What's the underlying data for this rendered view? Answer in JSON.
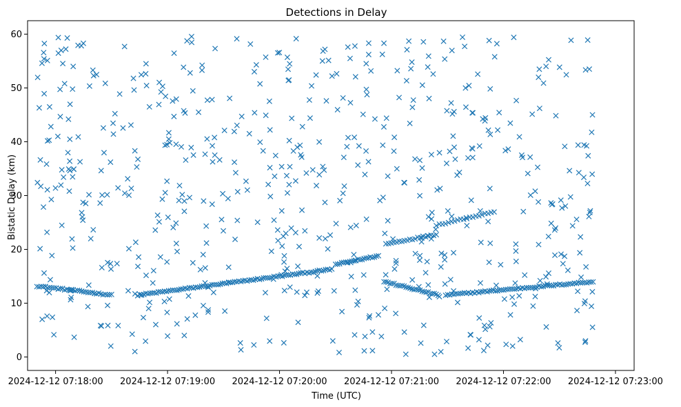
{
  "chart_data": {
    "type": "scatter",
    "title": "Detections in Delay",
    "xlabel": "Time (UTC)",
    "ylabel": "Bistatic Delay (km)",
    "x_unit": "seconds after 2024-12-12 07:17:50 UTC",
    "xlim": [
      -5,
      320
    ],
    "ylim": [
      -2.5,
      62.5
    ],
    "x_ticks": [
      {
        "value": 10,
        "label": "2024-12-12 07:18:00"
      },
      {
        "value": 70,
        "label": "2024-12-12 07:19:00"
      },
      {
        "value": 130,
        "label": "2024-12-12 07:20:00"
      },
      {
        "value": 190,
        "label": "2024-12-12 07:21:00"
      },
      {
        "value": 250,
        "label": "2024-12-12 07:22:00"
      },
      {
        "value": 310,
        "label": "2024-12-12 07:23:00"
      }
    ],
    "y_ticks": [
      {
        "value": 0,
        "label": "0"
      },
      {
        "value": 10,
        "label": "10"
      },
      {
        "value": 20,
        "label": "20"
      },
      {
        "value": 30,
        "label": "30"
      },
      {
        "value": 40,
        "label": "40"
      },
      {
        "value": 50,
        "label": "50"
      },
      {
        "value": 60,
        "label": "60"
      }
    ],
    "marker": "x",
    "color": "#1f77b4",
    "grid": false,
    "legend": "none",
    "track_segments": [
      {
        "x_start": 0,
        "x_end": 40,
        "y_start": 13.2,
        "y_end": 11.5,
        "count": 36
      },
      {
        "x_start": 54,
        "x_end": 158,
        "y_start": 11.5,
        "y_end": 16.3,
        "count": 95
      },
      {
        "x_start": 160,
        "x_end": 183,
        "y_start": 17.2,
        "y_end": 18.8,
        "count": 22
      },
      {
        "x_start": 187,
        "x_end": 214,
        "y_start": 21.0,
        "y_end": 22.8,
        "count": 20
      },
      {
        "x_start": 214,
        "x_end": 245,
        "y_start": 24.5,
        "y_end": 27.0,
        "count": 20
      },
      {
        "x_start": 186,
        "x_end": 215,
        "y_start": 14.0,
        "y_end": 11.5,
        "count": 28
      },
      {
        "x_start": 219,
        "x_end": 298,
        "y_start": 11.5,
        "y_end": 14.0,
        "count": 72
      }
    ],
    "clutter_points": {
      "count": 640,
      "x_range": [
        0,
        298
      ],
      "y_range": [
        0.5,
        59.8
      ],
      "seed": 12345
    }
  }
}
